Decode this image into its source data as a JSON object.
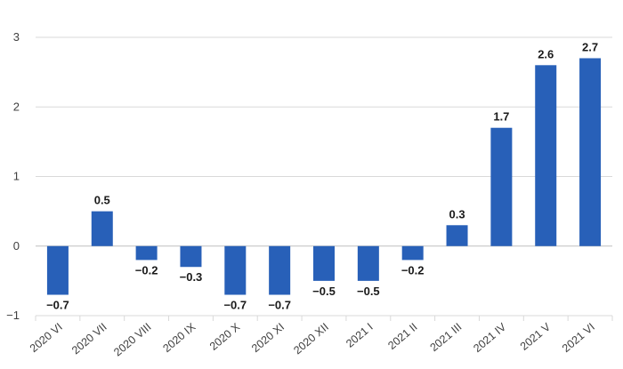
{
  "chart_data": {
    "type": "bar",
    "title": "",
    "xlabel": "",
    "ylabel": "",
    "categories": [
      "2020 VI",
      "2020 VII",
      "2020 VIII",
      "2020 IX",
      "2020 X",
      "2020 XI",
      "2020 XII",
      "2021 I",
      "2021 II",
      "2021 III",
      "2021 IV",
      "2021 V",
      "2021 VI"
    ],
    "values": [
      -0.7,
      0.5,
      -0.2,
      -0.3,
      -0.7,
      -0.7,
      -0.5,
      -0.5,
      -0.2,
      0.3,
      1.7,
      2.6,
      2.7
    ],
    "value_labels": [
      "−0.7",
      "0.5",
      "−0.2",
      "−0.3",
      "−0.7",
      "−0.7",
      "−0.5",
      "−0.5",
      "−0.2",
      "0.3",
      "1.7",
      "2.6",
      "2.7"
    ],
    "y_ticks": [
      3,
      2,
      1,
      0,
      -1
    ],
    "y_tick_labels": [
      "3",
      "2",
      "1",
      "0",
      "−1"
    ],
    "ylim": [
      -1,
      3
    ],
    "grid": true,
    "bar_color": "#2860b8"
  }
}
